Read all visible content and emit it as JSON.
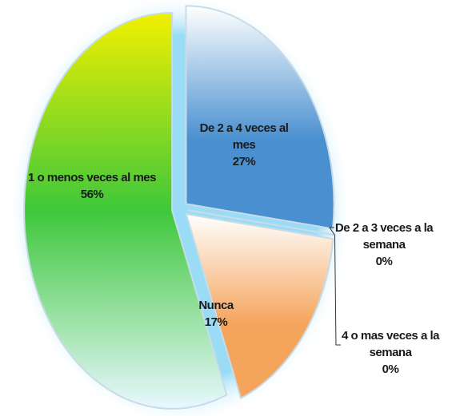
{
  "chart_data": {
    "type": "pie",
    "categories": [
      "De 2 a 4 veces al mes",
      "De 2 a 3 veces a la semana",
      "4 o mas veces a la semana",
      "Nunca",
      "1 o menos veces al mes"
    ],
    "values": [
      27,
      0,
      0,
      17,
      56
    ],
    "value_labels": [
      "27%",
      "0%",
      "0%",
      "17%",
      "56%"
    ],
    "colors": [
      "#4a90d0",
      "#7a9cc6",
      "#a080c0",
      "#f5a45c",
      "#3ec83a"
    ]
  }
}
